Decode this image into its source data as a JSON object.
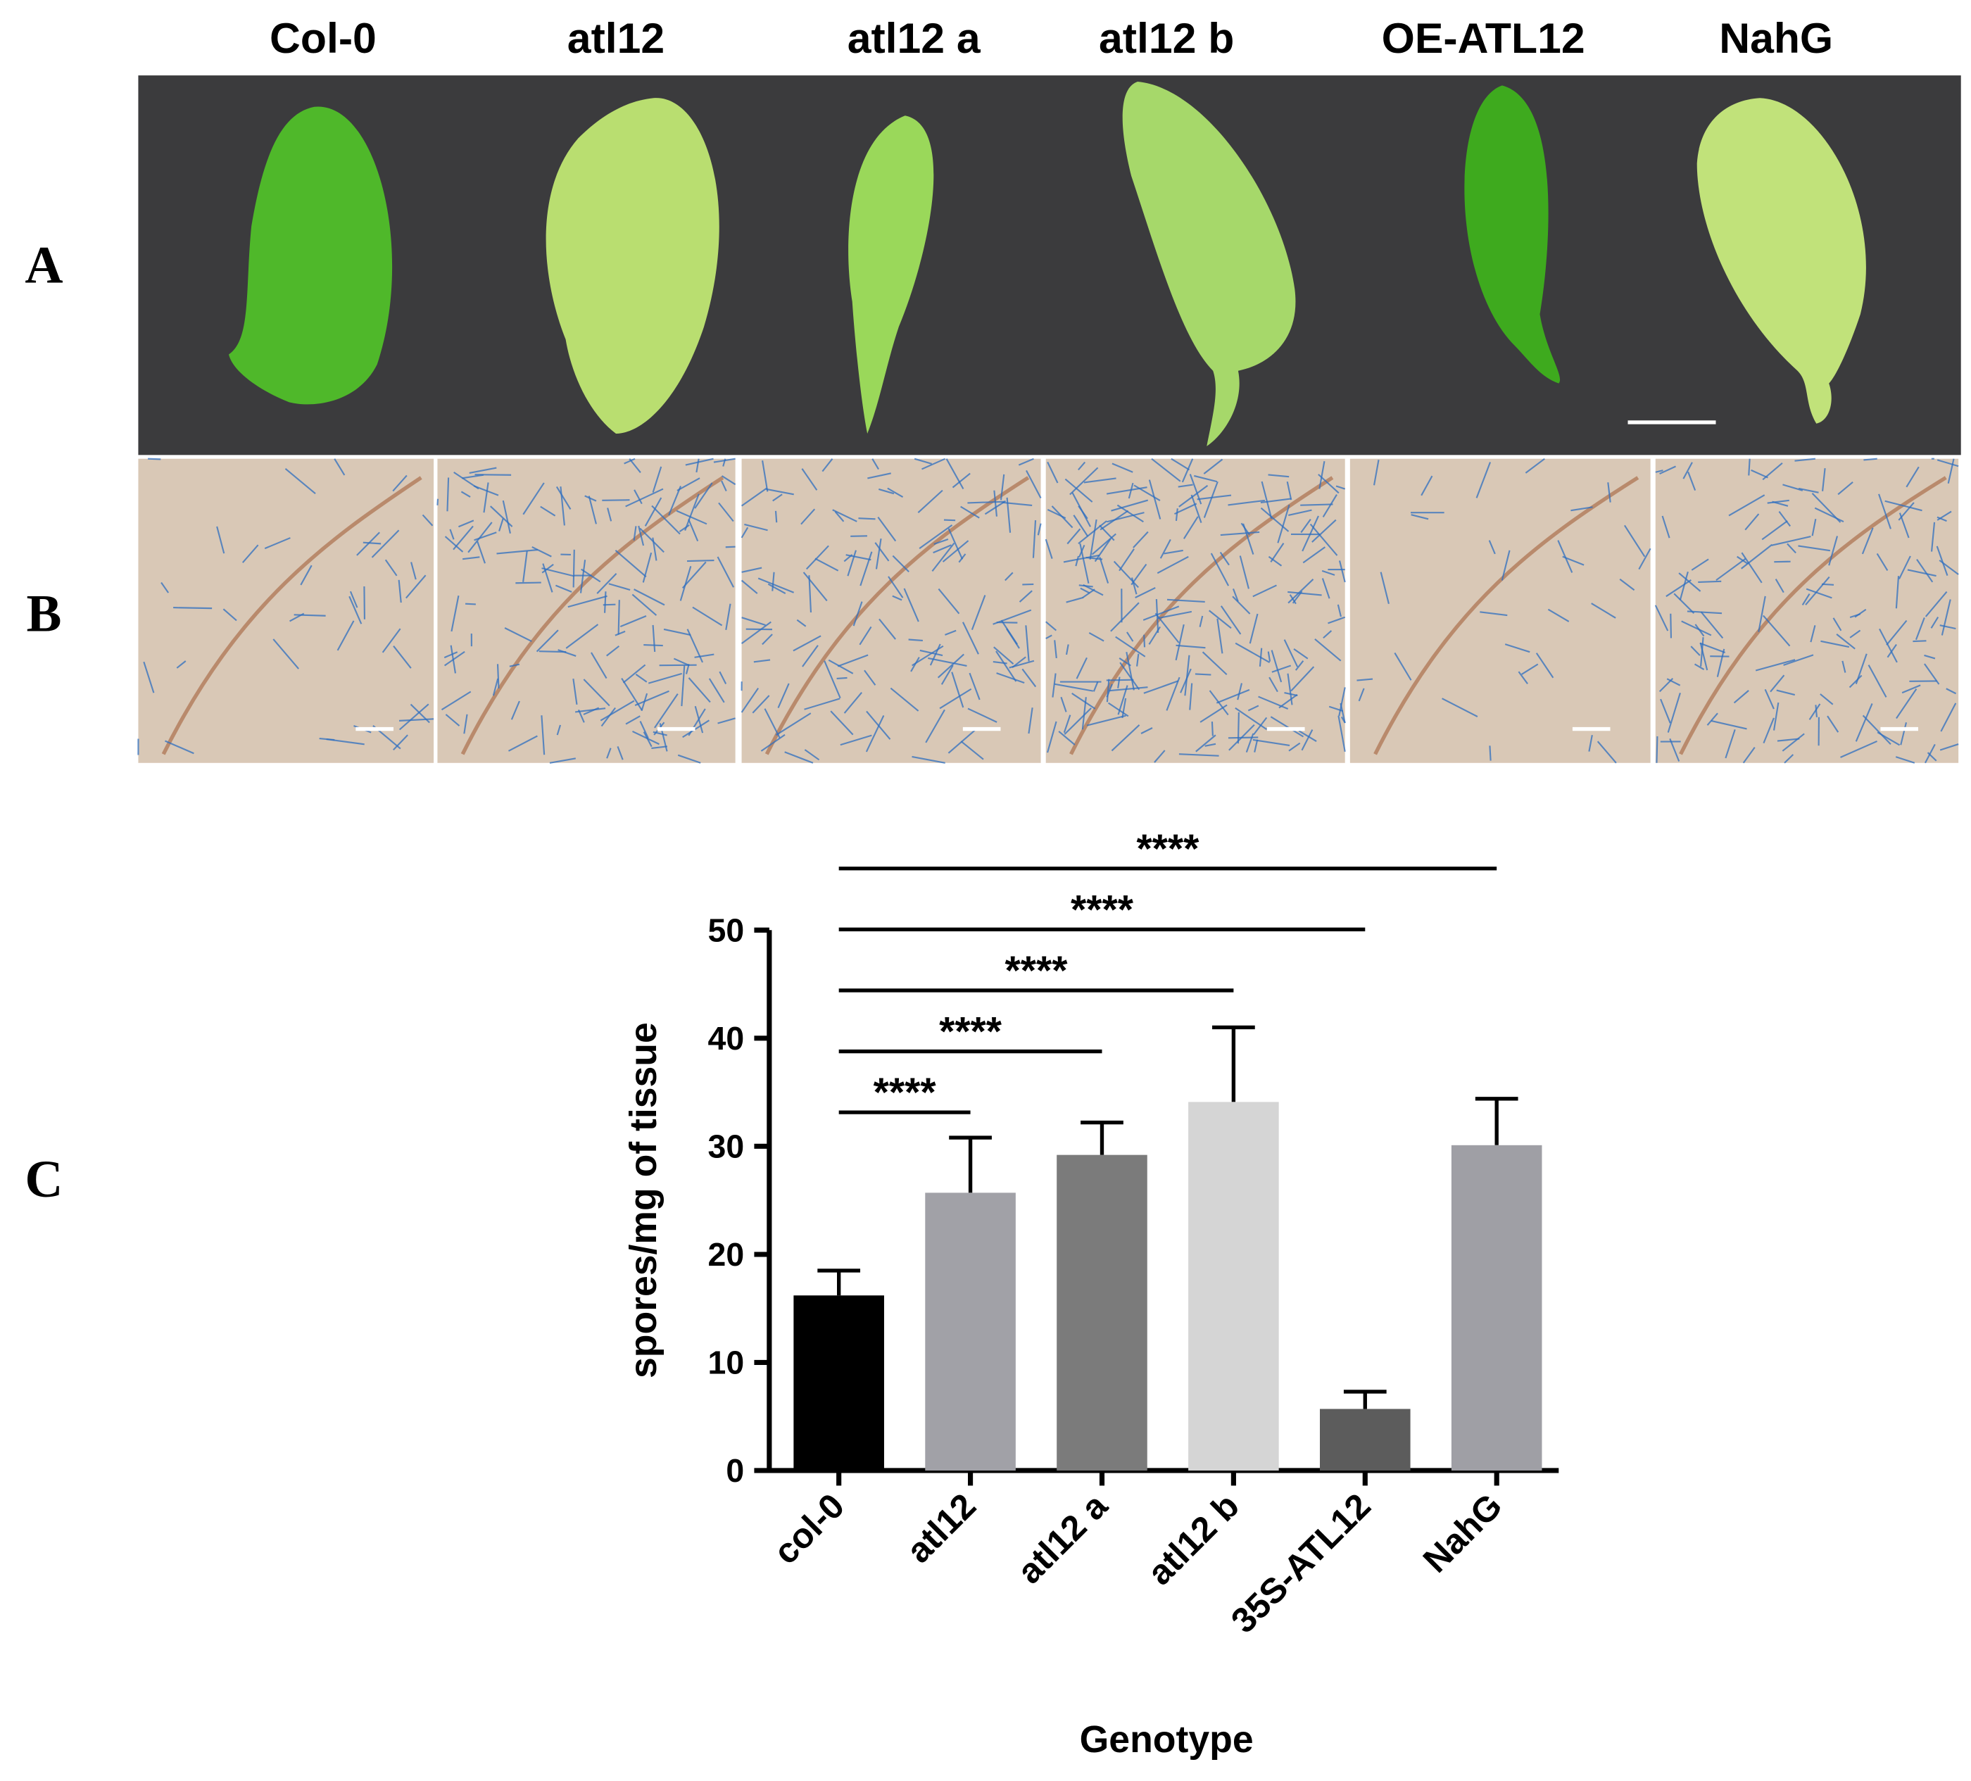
{
  "figure": {
    "panel_labels": [
      "A",
      "B",
      "C"
    ],
    "genotypes": [
      "Col-0",
      "atl12",
      "atl12 a",
      "atl12 b",
      "OE-ATL12",
      "NahG"
    ]
  },
  "chart_data": {
    "type": "bar",
    "categories": [
      "col-0",
      "atl12",
      "atl12 a",
      "atl12 b",
      "35S-ATL12",
      "NahG"
    ],
    "values": [
      16.2,
      25.7,
      29.2,
      34.1,
      5.7,
      30.1
    ],
    "errors": [
      2.3,
      5.1,
      3.0,
      6.9,
      1.6,
      4.3
    ],
    "colors": [
      "#000000",
      "#a1a1a7",
      "#7b7b7b",
      "#d5d5d5",
      "#5c5c5c",
      "#9f9fa5"
    ],
    "x_label": "Genotype",
    "y_label": "spores/mg of tissue",
    "ylim": [
      0,
      50
    ],
    "yticks": [
      0,
      10,
      20,
      30,
      40,
      50
    ],
    "annotations": [
      {
        "text": "****",
        "from": "col-0",
        "to": "atl12"
      },
      {
        "text": "****",
        "from": "col-0",
        "to": "atl12 a"
      },
      {
        "text": "****",
        "from": "col-0",
        "to": "atl12 b"
      },
      {
        "text": "****",
        "from": "col-0",
        "to": "35S-ATL12"
      },
      {
        "text": "****",
        "from": "col-0",
        "to": "NahG"
      }
    ]
  }
}
